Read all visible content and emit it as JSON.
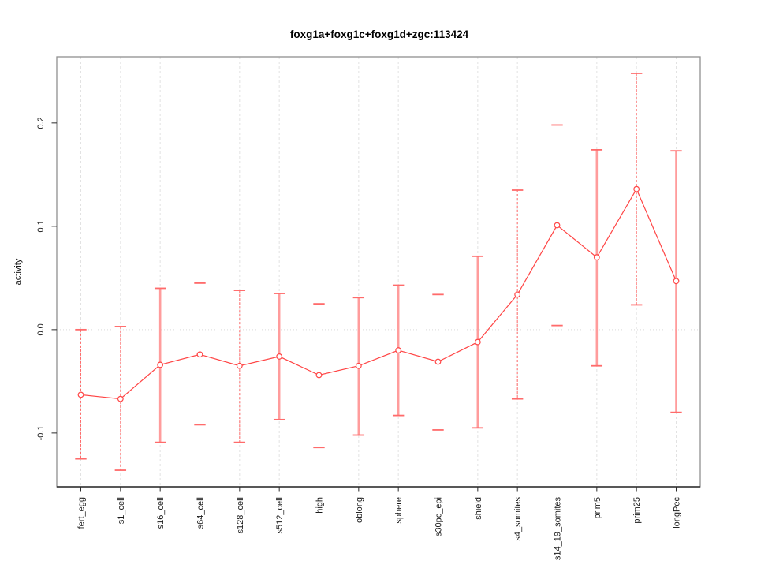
{
  "chart_data": {
    "type": "line",
    "title": "foxg1a+foxg1c+foxg1d+zgc:113424",
    "xlabel": "",
    "ylabel": "activity",
    "categories": [
      "fert_egg",
      "s1_cell",
      "s16_cell",
      "s64_cell",
      "s128_cell",
      "s512_cell",
      "high",
      "oblong",
      "sphere",
      "s30pc_epi",
      "shield",
      "s4_somites",
      "s14_19_somites",
      "prim5",
      "prim25",
      "longPec"
    ],
    "series": [
      {
        "name": "activity",
        "values": [
          -0.063,
          -0.067,
          -0.034,
          -0.024,
          -0.035,
          -0.026,
          -0.044,
          -0.035,
          -0.02,
          -0.031,
          -0.012,
          0.034,
          0.101,
          0.07,
          0.136,
          0.047
        ],
        "error_low": [
          -0.125,
          -0.136,
          -0.109,
          -0.092,
          -0.109,
          -0.087,
          -0.114,
          -0.102,
          -0.083,
          -0.097,
          -0.095,
          -0.067,
          0.004,
          -0.035,
          0.024,
          -0.08
        ],
        "error_high": [
          0.0,
          0.003,
          0.04,
          0.045,
          0.038,
          0.035,
          0.025,
          0.031,
          0.043,
          0.034,
          0.071,
          0.135,
          0.198,
          0.174,
          0.248,
          0.173
        ]
      }
    ],
    "error_bar_styles": [
      "dashed",
      "dashed",
      "solid",
      "dashed",
      "dashed",
      "solid",
      "dashed",
      "solid",
      "solid",
      "dashed",
      "solid",
      "dashed",
      "dashed",
      "solid",
      "dashed",
      "solid"
    ],
    "yticks": [
      -0.1,
      0.0,
      0.1,
      0.2
    ],
    "ytick_labels": [
      "-0.1",
      "0.0",
      "0.1",
      "0.2"
    ],
    "ylim": [
      -0.152,
      0.264
    ],
    "marker": "open-circle",
    "legend": "none",
    "grid": {
      "vertical": "dashed-per-category",
      "horizontal": "dotted-at-zero"
    },
    "colors": {
      "series": "#ff4545",
      "error_bar": "#ff6b6b",
      "error_bar_solid": "#ff9c9c",
      "grid": "#e2e2e2",
      "zero_line": "#d9d9d9",
      "frame": "#909090",
      "axis": "#2b2b2b",
      "background": "#ffffff"
    }
  }
}
